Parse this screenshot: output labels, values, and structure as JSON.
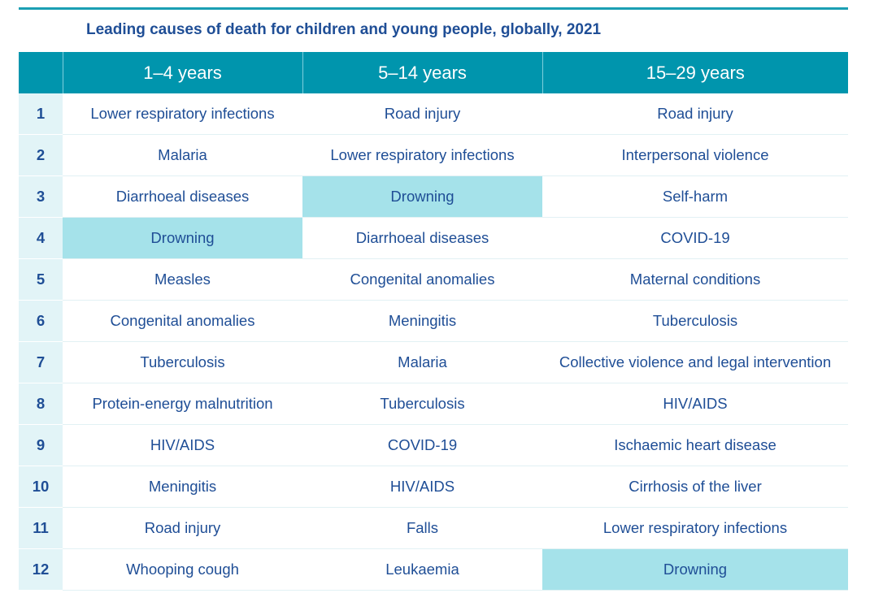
{
  "title": "Leading causes of death for children and young people, globally, 2021",
  "colors": {
    "header": "#0095ad",
    "highlight": "#a5e2ea",
    "text": "#1f4e96",
    "rank_bg": "#e2f4f7"
  },
  "columns": [
    "",
    "1–4 years",
    "5–14 years",
    "15–29 years"
  ],
  "highlight_cause": "Drowning",
  "rows": [
    {
      "rank": "1",
      "c1": "Lower respiratory infections",
      "c2": "Road injury",
      "c3": "Road injury"
    },
    {
      "rank": "2",
      "c1": "Malaria",
      "c2": "Lower respiratory infections",
      "c3": "Interpersonal violence"
    },
    {
      "rank": "3",
      "c1": "Diarrhoeal diseases",
      "c2": "Drowning",
      "c3": "Self-harm"
    },
    {
      "rank": "4",
      "c1": "Drowning",
      "c2": "Diarrhoeal diseases",
      "c3": "COVID-19"
    },
    {
      "rank": "5",
      "c1": "Measles",
      "c2": "Congenital anomalies",
      "c3": "Maternal conditions"
    },
    {
      "rank": "6",
      "c1": "Congenital anomalies",
      "c2": "Meningitis",
      "c3": "Tuberculosis"
    },
    {
      "rank": "7",
      "c1": "Tuberculosis",
      "c2": "Malaria",
      "c3": "Collective violence and legal intervention"
    },
    {
      "rank": "8",
      "c1": "Protein-energy malnutrition",
      "c2": "Tuberculosis",
      "c3": "HIV/AIDS"
    },
    {
      "rank": "9",
      "c1": "HIV/AIDS",
      "c2": "COVID-19",
      "c3": "Ischaemic heart disease"
    },
    {
      "rank": "10",
      "c1": "Meningitis",
      "c2": "HIV/AIDS",
      "c3": "Cirrhosis of the liver"
    },
    {
      "rank": "11",
      "c1": "Road injury",
      "c2": "Falls",
      "c3": "Lower respiratory infections"
    },
    {
      "rank": "12",
      "c1": "Whooping cough",
      "c2": "Leukaemia",
      "c3": "Drowning"
    }
  ]
}
